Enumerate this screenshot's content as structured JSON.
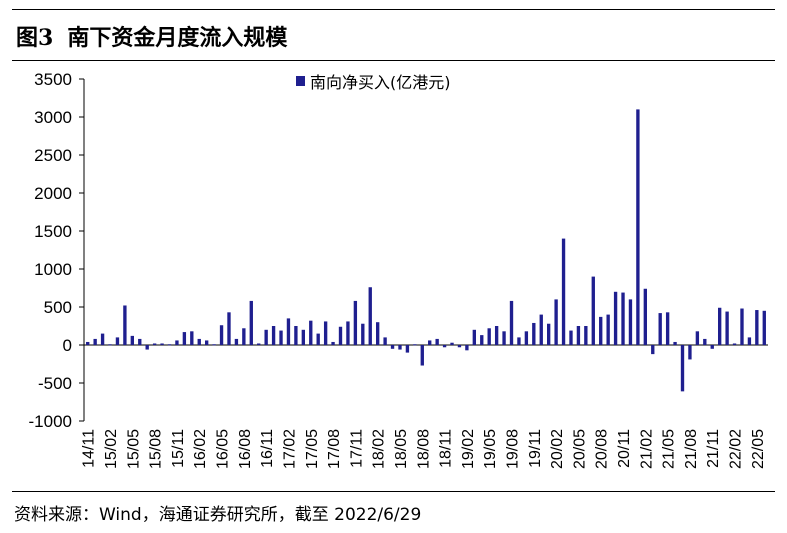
{
  "figure": {
    "number": "图3",
    "title": "南下资金月度流入规模",
    "source": "资料来源：Wind，海通证券研究所，截至 2022/6/29"
  },
  "colors": {
    "bar": "#1f1f8f",
    "axis": "#000000"
  },
  "chart_data": {
    "type": "bar",
    "title": "南下资金月度流入规模",
    "legend": {
      "label": "南向净买入(亿港元)",
      "position": "top-center"
    },
    "ylim": [
      -1000,
      3500
    ],
    "yticks": [
      -1000,
      -500,
      0,
      500,
      1000,
      1500,
      2000,
      2500,
      3000,
      3500
    ],
    "tick_labels": [
      "14/11",
      "15/02",
      "15/05",
      "15/08",
      "15/11",
      "16/02",
      "16/05",
      "16/08",
      "16/11",
      "17/02",
      "17/05",
      "17/08",
      "17/11",
      "18/02",
      "18/05",
      "18/08",
      "18/11",
      "19/02",
      "19/05",
      "19/08",
      "19/11",
      "20/02",
      "20/05",
      "20/08",
      "20/11",
      "21/02",
      "21/05",
      "21/08",
      "21/11",
      "22/02",
      "22/05"
    ],
    "categories": [
      "14/11",
      "14/12",
      "15/01",
      "15/02",
      "15/03",
      "15/04",
      "15/05",
      "15/06",
      "15/07",
      "15/08",
      "15/09",
      "15/10",
      "15/11",
      "15/12",
      "16/01",
      "16/02",
      "16/03",
      "16/04",
      "16/05",
      "16/06",
      "16/07",
      "16/08",
      "16/09",
      "16/10",
      "16/11",
      "16/12",
      "17/01",
      "17/02",
      "17/03",
      "17/04",
      "17/05",
      "17/06",
      "17/07",
      "17/08",
      "17/09",
      "17/10",
      "17/11",
      "17/12",
      "18/01",
      "18/02",
      "18/03",
      "18/04",
      "18/05",
      "18/06",
      "18/07",
      "18/08",
      "18/09",
      "18/10",
      "18/11",
      "18/12",
      "19/01",
      "19/02",
      "19/03",
      "19/04",
      "19/05",
      "19/06",
      "19/07",
      "19/08",
      "19/09",
      "19/10",
      "19/11",
      "19/12",
      "20/01",
      "20/02",
      "20/03",
      "20/04",
      "20/05",
      "20/06",
      "20/07",
      "20/08",
      "20/09",
      "20/10",
      "20/11",
      "20/12",
      "21/01",
      "21/02",
      "21/03",
      "21/04",
      "21/05",
      "21/06",
      "21/07",
      "21/08",
      "21/09",
      "21/10",
      "21/11",
      "21/12",
      "22/01",
      "22/02",
      "22/03",
      "22/04",
      "22/05",
      "22/06"
    ],
    "series": [
      {
        "name": "南向净买入(亿港元)",
        "values": [
          40,
          80,
          150,
          10,
          100,
          520,
          120,
          80,
          -60,
          20,
          20,
          10,
          60,
          170,
          180,
          80,
          60,
          10,
          260,
          430,
          80,
          220,
          580,
          20,
          200,
          250,
          190,
          350,
          250,
          200,
          320,
          150,
          310,
          40,
          240,
          310,
          580,
          280,
          760,
          300,
          100,
          -50,
          -60,
          -100,
          10,
          -270,
          60,
          80,
          -30,
          30,
          -30,
          -70,
          200,
          130,
          220,
          250,
          180,
          580,
          100,
          180,
          290,
          400,
          280,
          600,
          1400,
          190,
          250,
          250,
          900,
          370,
          400,
          700,
          690,
          600,
          3100,
          740,
          -120,
          420,
          430,
          40,
          -610,
          -190,
          180,
          80,
          -50,
          490,
          440,
          20,
          480,
          100,
          460,
          450
        ]
      }
    ]
  }
}
